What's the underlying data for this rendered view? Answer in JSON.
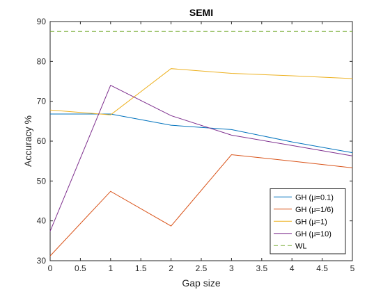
{
  "chart_data": {
    "type": "line",
    "title": "SEMI",
    "xlabel": "Gap size",
    "ylabel": "Accuracy %",
    "xlim": [
      0,
      5
    ],
    "ylim": [
      30,
      90
    ],
    "x_ticks": [
      0,
      0.5,
      1,
      1.5,
      2,
      2.5,
      3,
      3.5,
      4,
      4.5,
      5
    ],
    "x_tick_labels": [
      "0",
      "0.5",
      "1",
      "1.5",
      "2",
      "2.5",
      "3",
      "3.5",
      "4",
      "4.5",
      "5"
    ],
    "y_ticks": [
      30,
      40,
      50,
      60,
      70,
      80,
      90
    ],
    "y_tick_labels": [
      "30",
      "40",
      "50",
      "60",
      "70",
      "80",
      "90"
    ],
    "grid": false,
    "legend_position": "bottom-right",
    "series": [
      {
        "name": "GH (μ=0.1)",
        "color": "#0072bd",
        "dash": "solid",
        "x": [
          0,
          1,
          2,
          3,
          4,
          5
        ],
        "y": [
          66.8,
          66.8,
          64.0,
          62.9,
          59.8,
          57.1
        ]
      },
      {
        "name": "GH (μ=1/6)",
        "color": "#d95319",
        "dash": "solid",
        "x": [
          0,
          1,
          2,
          3,
          4,
          5
        ],
        "y": [
          31.2,
          47.4,
          38.7,
          56.6,
          55.0,
          53.3
        ]
      },
      {
        "name": "GH (μ=1)",
        "color": "#edb120",
        "dash": "solid",
        "x": [
          0,
          1,
          2,
          3,
          4,
          5
        ],
        "y": [
          67.8,
          66.6,
          78.2,
          77.0,
          76.4,
          75.7
        ]
      },
      {
        "name": "GH (μ=10)",
        "color": "#7e2f8e",
        "dash": "solid",
        "x": [
          0,
          1,
          2,
          3,
          4,
          5
        ],
        "y": [
          37.4,
          74.0,
          66.4,
          61.5,
          58.9,
          56.3
        ]
      },
      {
        "name": "WL",
        "color": "#77ac30",
        "dash": "dashed",
        "x": [
          0,
          1,
          2,
          3,
          4,
          5
        ],
        "y": [
          87.5,
          87.5,
          87.5,
          87.5,
          87.5,
          87.5
        ]
      }
    ]
  }
}
